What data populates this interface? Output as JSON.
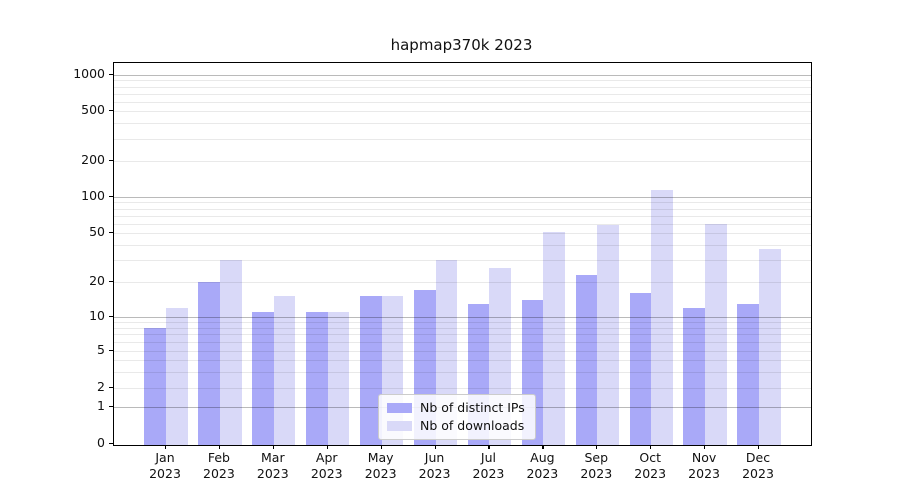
{
  "title": "hapmap370k 2023",
  "legend": {
    "items": [
      {
        "label": "Nb of distinct IPs",
        "color": "#a9a9f8"
      },
      {
        "label": "Nb of downloads",
        "color": "#d9d9f8"
      }
    ]
  },
  "chart_data": {
    "type": "bar",
    "title": "hapmap370k 2023",
    "categories": [
      "Jan 2023",
      "Feb 2023",
      "Mar 2023",
      "Apr 2023",
      "May 2023",
      "Jun 2023",
      "Jul 2023",
      "Aug 2023",
      "Sep 2023",
      "Oct 2023",
      "Nov 2023",
      "Dec 2023"
    ],
    "series": [
      {
        "name": "Nb of distinct IPs",
        "color": "#a9a9f8",
        "values": [
          8,
          20,
          11,
          11,
          15,
          17,
          13,
          14,
          23,
          16,
          12,
          13
        ]
      },
      {
        "name": "Nb of downloads",
        "color": "#d9d9f8",
        "values": [
          12,
          30,
          15,
          11,
          15,
          30,
          26,
          51,
          58,
          115,
          60,
          37
        ]
      }
    ],
    "xlabel": "",
    "ylabel": "",
    "yscale": "symlog",
    "y_ticks": [
      0,
      1,
      2,
      5,
      10,
      20,
      50,
      100,
      200,
      500,
      1000
    ],
    "ylim": [
      0,
      1100
    ],
    "grid": true,
    "legend_position": "lower center"
  }
}
